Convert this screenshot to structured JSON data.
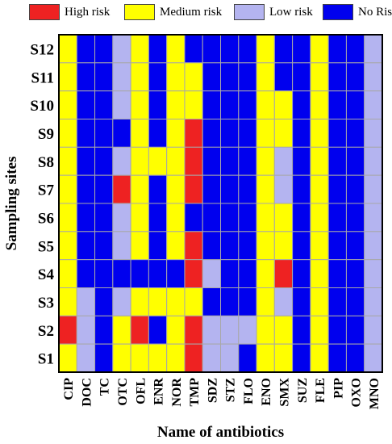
{
  "chart_data": {
    "type": "heatmap",
    "title": "",
    "xlabel": "Name of antibiotics",
    "ylabel": "Sampling sites",
    "x": [
      "CIP",
      "DOC",
      "TC",
      "OTC",
      "OFL",
      "ENR",
      "NOR",
      "TMP",
      "SDZ",
      "STZ",
      "FLO",
      "ENO",
      "SMX",
      "SUZ",
      "FLE",
      "PIP",
      "OXO",
      "MNO"
    ],
    "y": [
      "S12",
      "S11",
      "S10",
      "S9",
      "S8",
      "S7",
      "S6",
      "S5",
      "S4",
      "S3",
      "S2",
      "S1"
    ],
    "categories": [
      "High risk",
      "Medium risk",
      "Low risk",
      "No Risk"
    ],
    "colors": {
      "High risk": "#ee2222",
      "Medium risk": "#ffff00",
      "Low risk": "#b4b4f0",
      "No Risk": "#0000ee"
    },
    "legend_position": "top",
    "values": [
      [
        "Medium risk",
        "No Risk",
        "No Risk",
        "Low risk",
        "Medium risk",
        "No Risk",
        "Medium risk",
        "No Risk",
        "No Risk",
        "No Risk",
        "No Risk",
        "Medium risk",
        "No Risk",
        "No Risk",
        "Medium risk",
        "No Risk",
        "No Risk",
        "Low risk"
      ],
      [
        "Medium risk",
        "No Risk",
        "No Risk",
        "Low risk",
        "Medium risk",
        "No Risk",
        "Medium risk",
        "Medium risk",
        "No Risk",
        "No Risk",
        "No Risk",
        "Medium risk",
        "No Risk",
        "No Risk",
        "Medium risk",
        "No Risk",
        "No Risk",
        "Low risk"
      ],
      [
        "Medium risk",
        "No Risk",
        "No Risk",
        "Low risk",
        "Medium risk",
        "No Risk",
        "Medium risk",
        "Medium risk",
        "No Risk",
        "No Risk",
        "No Risk",
        "Medium risk",
        "Medium risk",
        "No Risk",
        "Medium risk",
        "No Risk",
        "No Risk",
        "Low risk"
      ],
      [
        "Medium risk",
        "No Risk",
        "No Risk",
        "No Risk",
        "Medium risk",
        "No Risk",
        "Medium risk",
        "High risk",
        "No Risk",
        "No Risk",
        "No Risk",
        "Medium risk",
        "Medium risk",
        "No Risk",
        "Medium risk",
        "No Risk",
        "No Risk",
        "Low risk"
      ],
      [
        "Medium risk",
        "No Risk",
        "No Risk",
        "Low risk",
        "Medium risk",
        "Medium risk",
        "Medium risk",
        "High risk",
        "No Risk",
        "No Risk",
        "No Risk",
        "Medium risk",
        "Low risk",
        "No Risk",
        "Medium risk",
        "No Risk",
        "No Risk",
        "Low risk"
      ],
      [
        "Medium risk",
        "No Risk",
        "No Risk",
        "High risk",
        "Medium risk",
        "No Risk",
        "Medium risk",
        "High risk",
        "No Risk",
        "No Risk",
        "No Risk",
        "Medium risk",
        "Low risk",
        "No Risk",
        "Medium risk",
        "No Risk",
        "No Risk",
        "Low risk"
      ],
      [
        "Medium risk",
        "No Risk",
        "No Risk",
        "Low risk",
        "Medium risk",
        "No Risk",
        "Medium risk",
        "No Risk",
        "No Risk",
        "No Risk",
        "No Risk",
        "Medium risk",
        "Medium risk",
        "No Risk",
        "Medium risk",
        "No Risk",
        "No Risk",
        "Low risk"
      ],
      [
        "Medium risk",
        "No Risk",
        "No Risk",
        "Low risk",
        "Medium risk",
        "No Risk",
        "Medium risk",
        "High risk",
        "No Risk",
        "No Risk",
        "No Risk",
        "Medium risk",
        "Medium risk",
        "No Risk",
        "Medium risk",
        "No Risk",
        "No Risk",
        "Low risk"
      ],
      [
        "Medium risk",
        "No Risk",
        "No Risk",
        "No Risk",
        "No Risk",
        "No Risk",
        "No Risk",
        "High risk",
        "Low risk",
        "No Risk",
        "No Risk",
        "Medium risk",
        "High risk",
        "No Risk",
        "Medium risk",
        "No Risk",
        "No Risk",
        "Low risk"
      ],
      [
        "Medium risk",
        "Low risk",
        "No Risk",
        "Low risk",
        "Medium risk",
        "Medium risk",
        "Medium risk",
        "Medium risk",
        "No Risk",
        "No Risk",
        "No Risk",
        "Medium risk",
        "Low risk",
        "No Risk",
        "Medium risk",
        "No Risk",
        "No Risk",
        "Low risk"
      ],
      [
        "High risk",
        "Low risk",
        "No Risk",
        "Medium risk",
        "High risk",
        "No Risk",
        "Medium risk",
        "High risk",
        "Low risk",
        "Low risk",
        "Low risk",
        "Medium risk",
        "Medium risk",
        "No Risk",
        "Medium risk",
        "No Risk",
        "No Risk",
        "Low risk"
      ],
      [
        "Medium risk",
        "Low risk",
        "No Risk",
        "Medium risk",
        "Medium risk",
        "Medium risk",
        "Medium risk",
        "High risk",
        "Low risk",
        "Low risk",
        "No Risk",
        "Medium risk",
        "Medium risk",
        "No Risk",
        "Medium risk",
        "No Risk",
        "No Risk",
        "Low risk"
      ]
    ]
  }
}
